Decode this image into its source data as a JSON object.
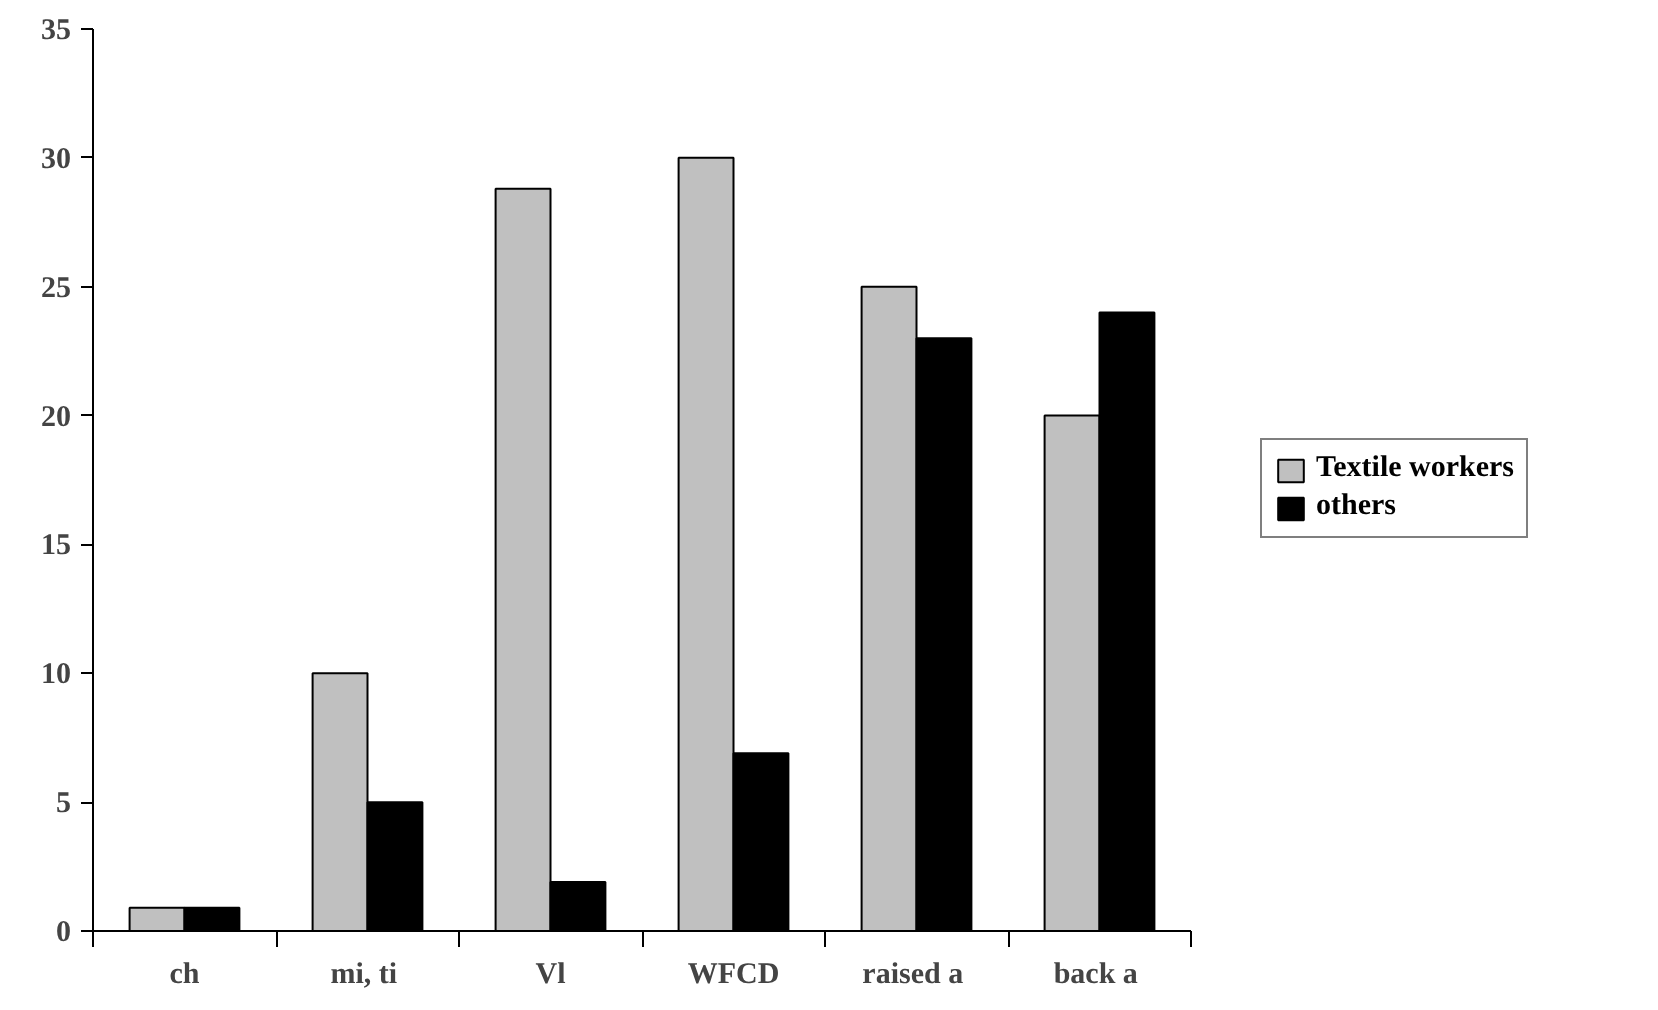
{
  "chart_data": {
    "type": "bar",
    "categories": [
      "ch",
      "mi,  ti",
      "Vl",
      "WFCD",
      "raised  a",
      "back  a"
    ],
    "series": [
      {
        "name": "Textile workers",
        "color": "#c0c0c0",
        "values": [
          0.9,
          10,
          28.8,
          30,
          25,
          20
        ]
      },
      {
        "name": "others",
        "color": "#000000",
        "values": [
          0.9,
          5,
          1.9,
          6.9,
          23,
          24
        ]
      }
    ],
    "ylim": [
      0,
      35
    ],
    "yticks": [
      0,
      5,
      10,
      15,
      20,
      25,
      30,
      35
    ],
    "grid": false,
    "legend": "right"
  }
}
